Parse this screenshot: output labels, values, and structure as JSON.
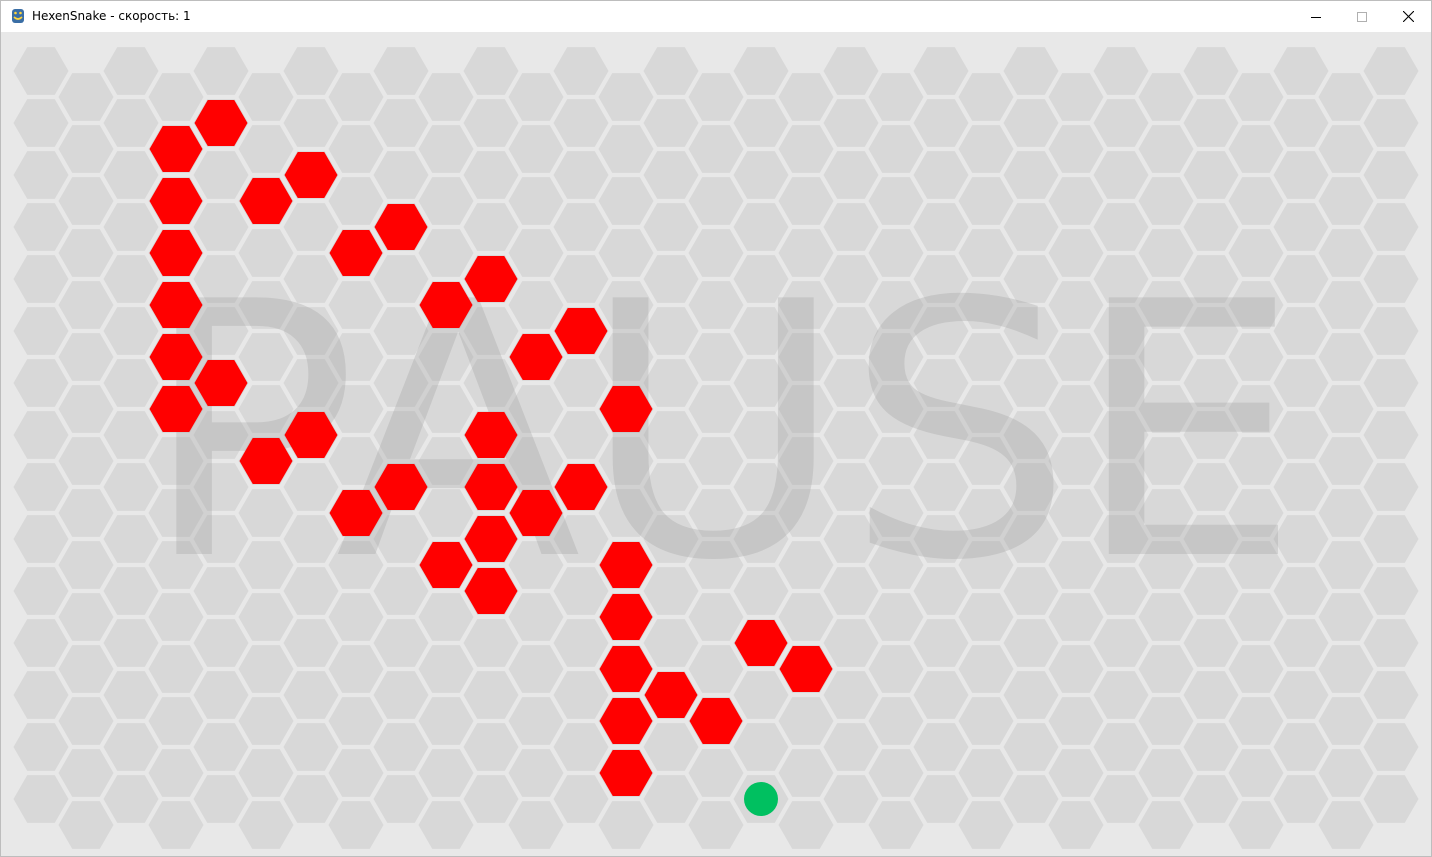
{
  "window": {
    "title": "HexenSnake - скорость: 1",
    "controls": {
      "minimize": "minimize-icon",
      "maximize": "maximize-icon",
      "close": "close-icon"
    }
  },
  "game": {
    "status_overlay": "PAUSE",
    "grid": {
      "cols": 31,
      "rows": 15
    },
    "colors": {
      "background": "#e8e8e8",
      "empty_cell": "#d8d8d8",
      "snake": "#ff0000",
      "food": "#00c060",
      "overlay_text": "#a0a0a0"
    },
    "snake_cells": [
      [
        3,
        1
      ],
      [
        4,
        1
      ],
      [
        5,
        2
      ],
      [
        6,
        2
      ],
      [
        7,
        3
      ],
      [
        8,
        3
      ],
      [
        9,
        4
      ],
      [
        10,
        4
      ],
      [
        11,
        5
      ],
      [
        12,
        5
      ],
      [
        13,
        6
      ],
      [
        3,
        2
      ],
      [
        3,
        3
      ],
      [
        3,
        4
      ],
      [
        3,
        5
      ],
      [
        3,
        6
      ],
      [
        4,
        6
      ],
      [
        5,
        7
      ],
      [
        6,
        7
      ],
      [
        7,
        8
      ],
      [
        8,
        8
      ],
      [
        9,
        9
      ],
      [
        10,
        9
      ],
      [
        10,
        7
      ],
      [
        11,
        8
      ],
      [
        12,
        8
      ],
      [
        13,
        9
      ],
      [
        13,
        10
      ],
      [
        13,
        11
      ],
      [
        13,
        12
      ],
      [
        13,
        13
      ],
      [
        10,
        8
      ],
      [
        10,
        10
      ],
      [
        14,
        12
      ],
      [
        15,
        12
      ],
      [
        16,
        11
      ],
      [
        17,
        11
      ]
    ],
    "food_cell": [
      16,
      14
    ]
  }
}
